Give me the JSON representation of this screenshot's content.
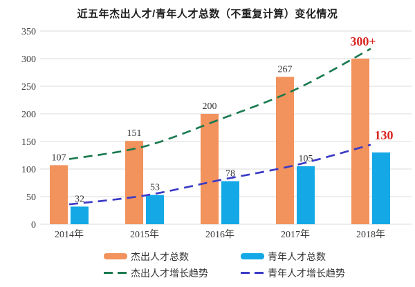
{
  "chart_data": {
    "type": "bar",
    "title": "近五年杰出人才/青年人才总数（不重复计算）变化情况",
    "categories": [
      "2014年",
      "2015年",
      "2016年",
      "2017年",
      "2018年"
    ],
    "series": [
      {
        "name": "杰出人才总数",
        "kind": "bar",
        "color": "#F2925C",
        "values": [
          107,
          151,
          200,
          267,
          300
        ],
        "labels": [
          "107",
          "151",
          "200",
          "267",
          "300+"
        ],
        "emphasize_last": true
      },
      {
        "name": "青年人才总数",
        "kind": "bar",
        "color": "#14A9E6",
        "values": [
          32,
          53,
          78,
          105,
          130
        ],
        "labels": [
          "32",
          "53",
          "78",
          "105",
          "130"
        ],
        "emphasize_last": true
      },
      {
        "name": "杰出人才增长趋势",
        "kind": "dashed-line",
        "color": "#1B7A50",
        "values": [
          118,
          141,
          190,
          244,
          318
        ]
      },
      {
        "name": "青年人才增长趋势",
        "kind": "dashed-line",
        "color": "#3B3BC6",
        "values": [
          36,
          52,
          80,
          107,
          144
        ]
      }
    ],
    "ylim": [
      0,
      350
    ],
    "yticks": [
      0,
      50,
      100,
      150,
      200,
      250,
      300,
      350
    ],
    "grid": true,
    "legend_position": "bottom",
    "style": {
      "background": "#FFFFFF",
      "grid_color": "#DBDBDB",
      "tick_color": "#3A3A3A",
      "value_label_color": "#353535",
      "emphasis_color": "#D9231F"
    }
  }
}
